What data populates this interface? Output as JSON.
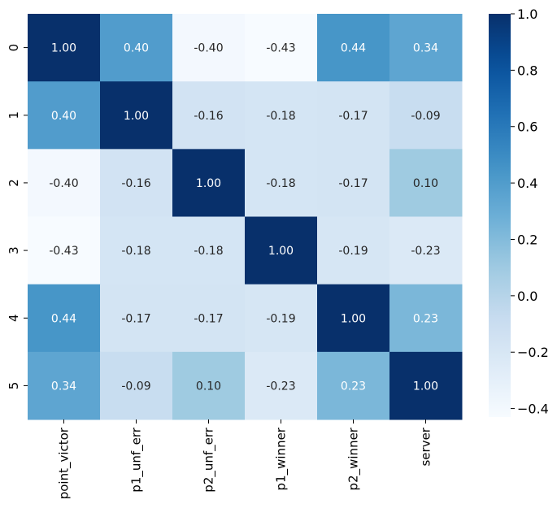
{
  "chart_data": {
    "type": "heatmap",
    "title": "",
    "xlabel": "",
    "ylabel": "",
    "x_categories": [
      "point_victor",
      "p1_unf_err",
      "p2_unf_err",
      "p1_winner",
      "p2_winner",
      "server"
    ],
    "y_categories": [
      "0",
      "1",
      "2",
      "3",
      "4",
      "5"
    ],
    "values": [
      [
        1.0,
        0.4,
        -0.4,
        -0.43,
        0.44,
        0.34
      ],
      [
        0.4,
        1.0,
        -0.16,
        -0.18,
        -0.17,
        -0.09
      ],
      [
        -0.4,
        -0.16,
        1.0,
        -0.18,
        -0.17,
        0.1
      ],
      [
        -0.43,
        -0.18,
        -0.18,
        1.0,
        -0.19,
        -0.23
      ],
      [
        0.44,
        -0.17,
        -0.17,
        -0.19,
        1.0,
        0.23
      ],
      [
        0.34,
        -0.09,
        0.1,
        -0.23,
        0.23,
        1.0
      ]
    ],
    "value_format": "0.00",
    "colormap": "Blues",
    "colorbar": {
      "range": [
        -0.43,
        1.0
      ],
      "ticks": [
        1.0,
        0.8,
        0.6,
        0.4,
        0.2,
        0.0,
        -0.2,
        -0.4
      ],
      "tick_labels": [
        "1.0",
        "0.8",
        "0.6",
        "0.4",
        "0.2",
        "0.0",
        "−0.2",
        "−0.4"
      ]
    },
    "colors": {
      "low": "#f7fbff",
      "mid": "#6baed6",
      "high": "#08306b",
      "text_dark": "#262626",
      "text_light": "#ffffff"
    }
  }
}
